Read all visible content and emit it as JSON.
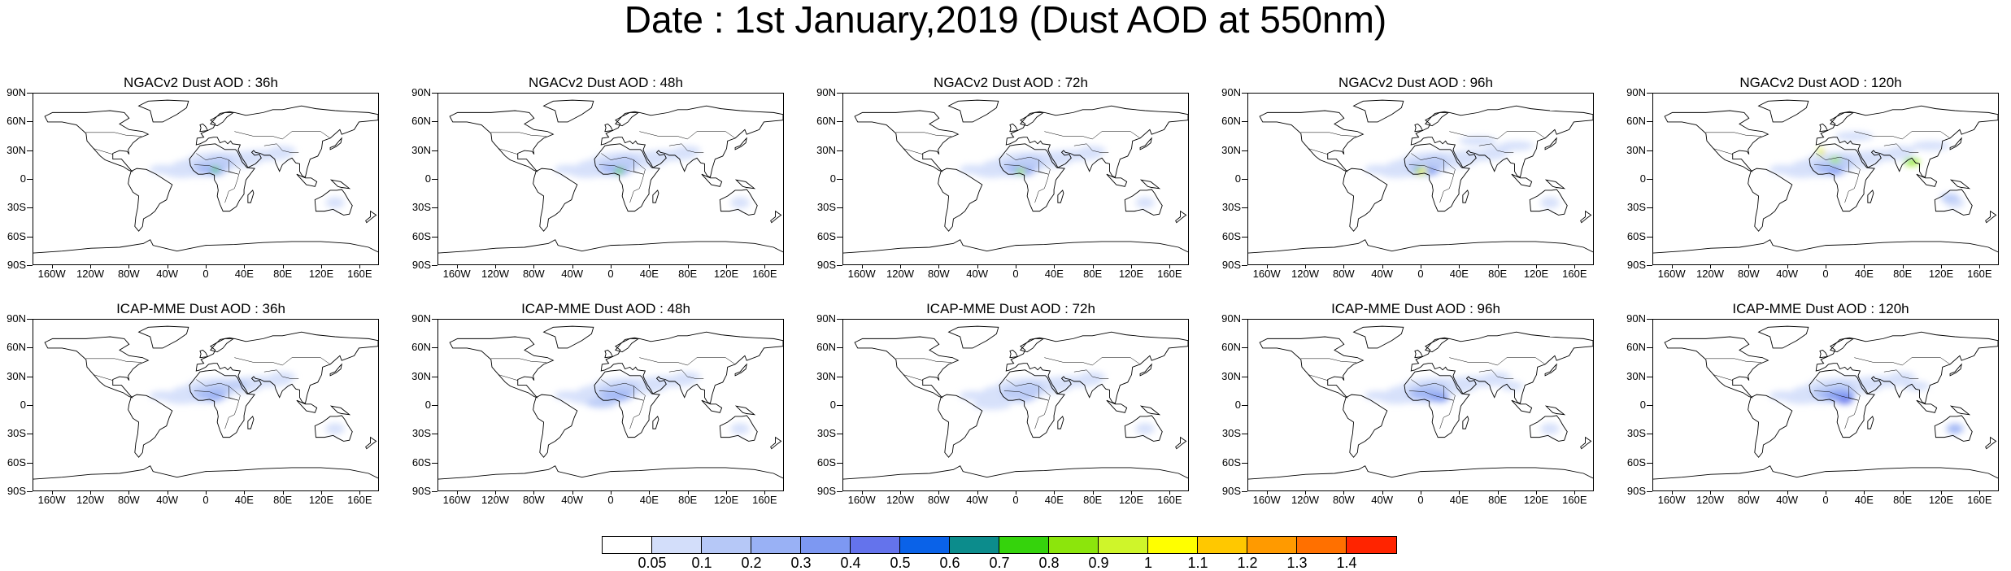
{
  "title": "Date : 1st January,2019 (Dust AOD at 550nm)",
  "lat_ticks": [
    "90N",
    "60N",
    "30N",
    "0",
    "30S",
    "60S",
    "90S"
  ],
  "lon_ticks": [
    "160W",
    "120W",
    "80W",
    "40W",
    "0",
    "40E",
    "80E",
    "120E",
    "160E"
  ],
  "panels": [
    {
      "title": "NGACv2 Dust AOD : 36h"
    },
    {
      "title": "NGACv2 Dust AOD : 48h"
    },
    {
      "title": "NGACv2 Dust AOD : 72h"
    },
    {
      "title": "NGACv2 Dust AOD : 96h"
    },
    {
      "title": "NGACv2 Dust AOD : 120h"
    },
    {
      "title": "ICAP-MME Dust AOD : 36h"
    },
    {
      "title": "ICAP-MME Dust AOD : 48h"
    },
    {
      "title": "ICAP-MME Dust AOD : 72h"
    },
    {
      "title": "ICAP-MME Dust AOD : 96h"
    },
    {
      "title": "ICAP-MME Dust AOD : 120h"
    }
  ],
  "colorbar": {
    "labels": [
      "0.05",
      "0.1",
      "0.2",
      "0.3",
      "0.4",
      "0.5",
      "0.6",
      "0.7",
      "0.8",
      "0.9",
      "1",
      "1.1",
      "1.2",
      "1.3",
      "1.4"
    ],
    "colors": [
      "#ffffff",
      "#d3defa",
      "#b6c8f7",
      "#99b1f5",
      "#7d98f2",
      "#6473ec",
      "#0a62e8",
      "#0c8c8c",
      "#35d30c",
      "#8ce50c",
      "#cff52a",
      "#ffff00",
      "#ffc800",
      "#ff9a00",
      "#ff7000",
      "#ff2400"
    ]
  }
}
